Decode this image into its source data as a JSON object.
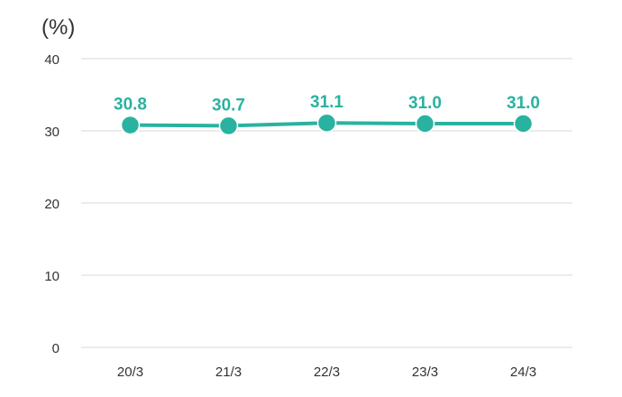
{
  "chart_data": {
    "type": "line",
    "unit_label": "(%)",
    "categories": [
      "20/3",
      "21/3",
      "22/3",
      "23/3",
      "24/3"
    ],
    "series": [
      {
        "values": [
          30.8,
          30.7,
          31.1,
          31.0,
          31.0
        ]
      }
    ],
    "data_labels": [
      "30.8",
      "30.7",
      "31.1",
      "31.0",
      "31.0"
    ],
    "ylim": [
      0,
      40
    ],
    "yticks": [
      "0",
      "10",
      "20",
      "30",
      "40"
    ],
    "grid": true,
    "legend": false,
    "colors": {
      "series": "#2ab2a0",
      "grid": "#d9d9d9",
      "text": "#333333"
    }
  }
}
